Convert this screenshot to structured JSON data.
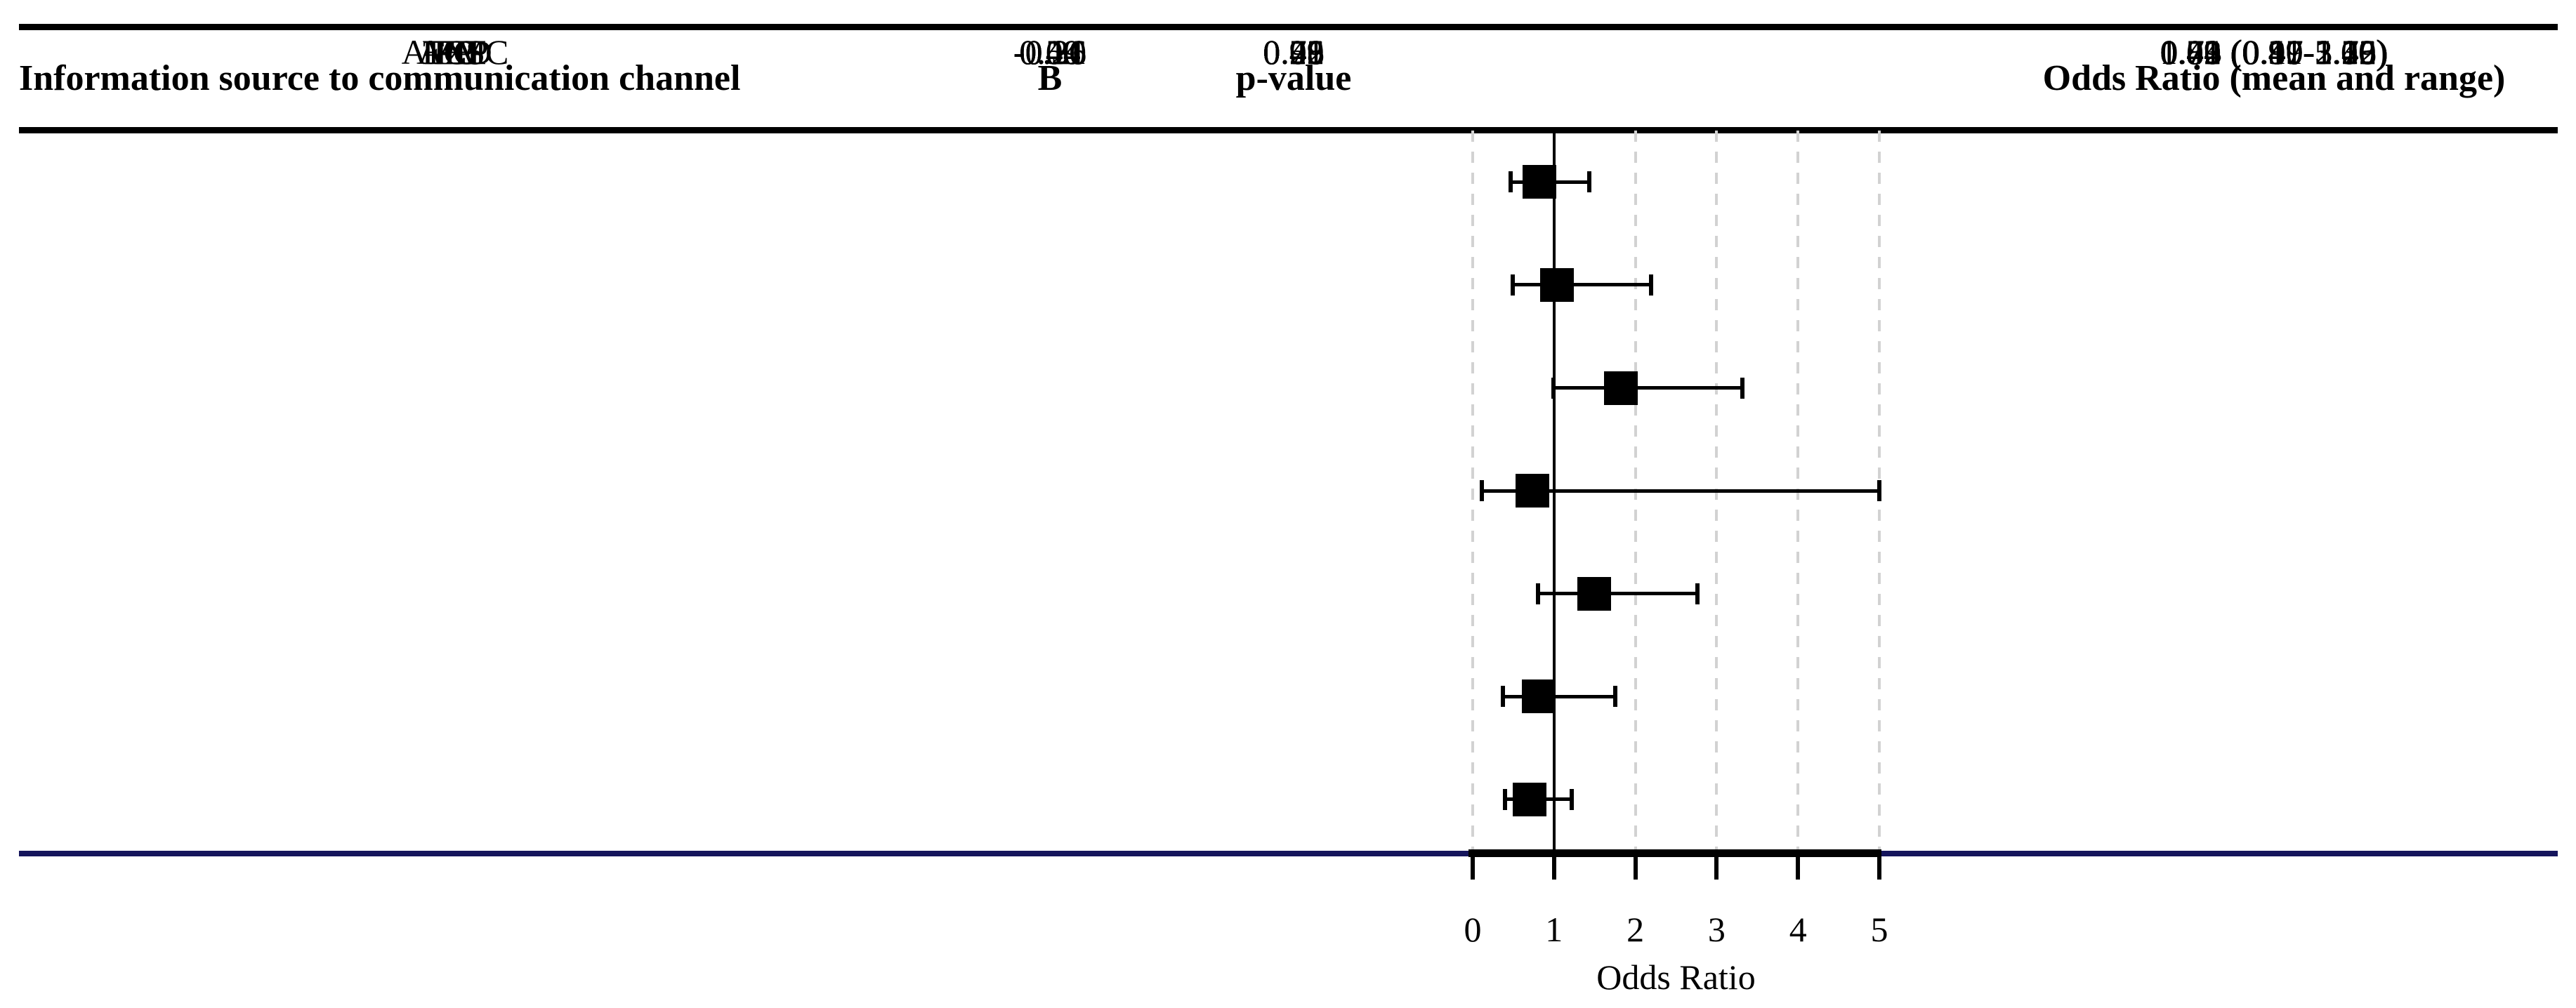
{
  "header": {
    "source": "Information source to communication channel",
    "b": "B",
    "p": "p-value",
    "or": "Odds Ratio (mean and range)"
  },
  "rows": [
    {
      "label": "ACD",
      "b": "-0.20",
      "p": "0.48",
      "or": "0.82 (0.47-1.43)"
    },
    {
      "label": "ATESC",
      "b": "0.04",
      "p": "0.92",
      "or": "1.04 (0.49-2.19)"
    },
    {
      "label": "EXP",
      "b": "0.59",
      "p": "0.06",
      "or": "1.82 (0.99-3.32)"
    },
    {
      "label": "FC",
      "b": "-0.31",
      "p": "0.75",
      "or": "0.73 (0.11-5.00)"
    },
    {
      "label": "FP",
      "b": "0.40",
      "p": "0.21",
      "or": "1.49 (0.80-2.76)"
    },
    {
      "label": "MM",
      "b": "-0.21",
      "p": "0.59",
      "or": "0.81 (0.37-1.75)"
    },
    {
      "label": "PE",
      "b": "-0.36",
      "p": "0.21",
      "or": "0.70 (0.40-1.22)"
    }
  ],
  "chart_data": {
    "type": "scatter",
    "variant": "forest-plot",
    "title": "",
    "xlabel": "Odds Ratio",
    "ylabel": "",
    "xlim": [
      0,
      5
    ],
    "x_ticks": [
      "0",
      "1",
      "2",
      "3",
      "4",
      "5"
    ],
    "x_tick_values": [
      0,
      1,
      2,
      3,
      4,
      5
    ],
    "reference_line_x": 1,
    "dashed_gridlines_x": [
      0,
      2,
      3,
      4,
      5
    ],
    "grid_style": "dashed",
    "legend": "none",
    "series": [
      {
        "name": "ACD",
        "mean": 0.82,
        "low": 0.47,
        "high": 1.43
      },
      {
        "name": "ATESC",
        "mean": 1.04,
        "low": 0.49,
        "high": 2.19
      },
      {
        "name": "EXP",
        "mean": 1.82,
        "low": 0.99,
        "high": 3.32
      },
      {
        "name": "FC",
        "mean": 0.73,
        "low": 0.11,
        "high": 5.0
      },
      {
        "name": "FP",
        "mean": 1.49,
        "low": 0.8,
        "high": 2.76
      },
      {
        "name": "MM",
        "mean": 0.81,
        "low": 0.37,
        "high": 1.75
      },
      {
        "name": "PE",
        "mean": 0.7,
        "low": 0.4,
        "high": 1.22
      }
    ]
  },
  "colors": {
    "text": "#000000",
    "rule": "#000000",
    "bottom_rule": "#15155c",
    "grid": "#d2d2d2",
    "marker": "#000000",
    "reference_line": "#000000",
    "background": "#ffffff"
  }
}
